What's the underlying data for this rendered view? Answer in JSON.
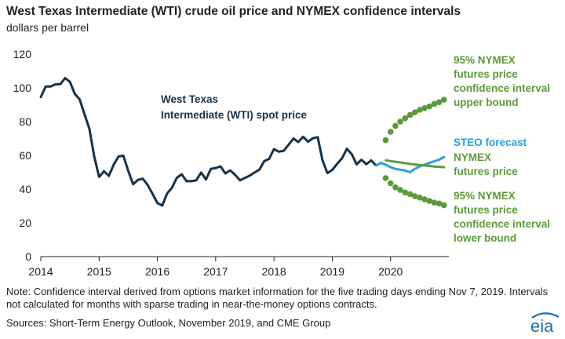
{
  "title": "West Texas Intermediate (WTI) crude oil price and NYMEX confidence intervals",
  "subtitle": "dollars per barrel",
  "note": "Note: Confidence interval derived from options market information for the five trading days ending Nov 7, 2019. Intervals not calculated for months with sparse trading in near-the-money options contracts.",
  "sources": "Sources: Short-Term Energy Outlook, November 2019, and CME Group",
  "logo_text": "eia",
  "colors": {
    "spot": "#13334c",
    "steo": "#2e9fd9",
    "nymex": "#5b9a3a",
    "ci": "#5b9a3a",
    "logo": "#1b6ea8"
  },
  "chart_data": {
    "type": "line",
    "title": "West Texas Intermediate (WTI) crude oil price and NYMEX confidence intervals",
    "ylabel": "dollars per barrel",
    "xlim": [
      "2014-01",
      "2020-12"
    ],
    "ylim": [
      0,
      120
    ],
    "yticks": [
      0,
      20,
      40,
      60,
      80,
      100,
      120
    ],
    "xticks": [
      "2014",
      "2015",
      "2016",
      "2017",
      "2018",
      "2019",
      "2020"
    ],
    "grid": false,
    "series": [
      {
        "name": "West Texas Intermediate (WTI) spot price",
        "label_lines": [
          "West Texas",
          "Intermediate (WTI) spot price"
        ],
        "style": "solid",
        "x": [
          "2014-01",
          "2014-02",
          "2014-03",
          "2014-04",
          "2014-05",
          "2014-06",
          "2014-07",
          "2014-08",
          "2014-09",
          "2014-10",
          "2014-11",
          "2014-12",
          "2015-01",
          "2015-02",
          "2015-03",
          "2015-04",
          "2015-05",
          "2015-06",
          "2015-07",
          "2015-08",
          "2015-09",
          "2015-10",
          "2015-11",
          "2015-12",
          "2016-01",
          "2016-02",
          "2016-03",
          "2016-04",
          "2016-05",
          "2016-06",
          "2016-07",
          "2016-08",
          "2016-09",
          "2016-10",
          "2016-11",
          "2016-12",
          "2017-01",
          "2017-02",
          "2017-03",
          "2017-04",
          "2017-05",
          "2017-06",
          "2017-07",
          "2017-08",
          "2017-09",
          "2017-10",
          "2017-11",
          "2017-12",
          "2018-01",
          "2018-02",
          "2018-03",
          "2018-04",
          "2018-05",
          "2018-06",
          "2018-07",
          "2018-08",
          "2018-09",
          "2018-10",
          "2018-11",
          "2018-12",
          "2019-01",
          "2019-02",
          "2019-03",
          "2019-04",
          "2019-05",
          "2019-06",
          "2019-07",
          "2019-08",
          "2019-09",
          "2019-10"
        ],
        "values": [
          94.6,
          100.8,
          100.8,
          102.1,
          102.2,
          105.8,
          103.6,
          96.5,
          93.2,
          84.4,
          75.8,
          59.3,
          47.2,
          50.6,
          47.8,
          54.5,
          59.3,
          59.8,
          50.9,
          42.9,
          45.5,
          46.2,
          42.4,
          37.2,
          31.7,
          30.3,
          37.5,
          40.8,
          46.7,
          48.8,
          44.7,
          44.7,
          45.2,
          49.8,
          45.7,
          52.0,
          52.5,
          53.5,
          49.3,
          51.1,
          48.5,
          45.2,
          46.6,
          48.0,
          49.8,
          51.6,
          56.6,
          57.9,
          63.7,
          62.2,
          62.7,
          66.3,
          70.0,
          67.9,
          71.0,
          68.1,
          70.2,
          70.8,
          57.0,
          49.5,
          51.4,
          55.0,
          58.2,
          63.9,
          60.8,
          54.7,
          57.4,
          54.8,
          57.0,
          54.0
        ]
      },
      {
        "name": "STEO forecast",
        "label_lines": [
          "STEO forecast"
        ],
        "style": "solid",
        "x": [
          "2019-10",
          "2019-11",
          "2019-12",
          "2020-01",
          "2020-02",
          "2020-03",
          "2020-04",
          "2020-05",
          "2020-06",
          "2020-07",
          "2020-08",
          "2020-09",
          "2020-10",
          "2020-11",
          "2020-12"
        ],
        "values": [
          54.0,
          55.5,
          54.5,
          53.0,
          52.0,
          51.5,
          51.0,
          50.0,
          52.0,
          53.5,
          54.5,
          55.5,
          56.5,
          57.5,
          59.0
        ]
      },
      {
        "name": "NYMEX futures price",
        "label_lines": [
          "NYMEX",
          "futures price"
        ],
        "style": "solid",
        "x": [
          "2019-12",
          "2020-01",
          "2020-02",
          "2020-03",
          "2020-04",
          "2020-05",
          "2020-06",
          "2020-07",
          "2020-08",
          "2020-09",
          "2020-10",
          "2020-11",
          "2020-12"
        ],
        "values": [
          57.0,
          56.6,
          56.2,
          55.8,
          55.4,
          55.0,
          54.6,
          54.3,
          54.0,
          53.7,
          53.4,
          53.2,
          53.0
        ]
      },
      {
        "name": "95% NYMEX futures price confidence interval upper bound",
        "label_lines": [
          "95% NYMEX",
          "futures price",
          "confidence interval",
          "upper bound"
        ],
        "style": "dotted",
        "x": [
          "2019-12",
          "2020-01",
          "2020-02",
          "2020-03",
          "2020-04",
          "2020-05",
          "2020-06",
          "2020-07",
          "2020-08",
          "2020-09",
          "2020-10",
          "2020-11",
          "2020-12"
        ],
        "values": [
          69.0,
          74.0,
          77.5,
          80.0,
          82.0,
          84.0,
          85.5,
          87.0,
          88.0,
          89.0,
          90.5,
          91.5,
          93.0
        ]
      },
      {
        "name": "95% NYMEX futures price confidence interval lower bound",
        "label_lines": [
          "95% NYMEX",
          "futures price",
          "confidence interval",
          "lower bound"
        ],
        "style": "dotted",
        "x": [
          "2019-12",
          "2020-01",
          "2020-02",
          "2020-03",
          "2020-04",
          "2020-05",
          "2020-06",
          "2020-07",
          "2020-08",
          "2020-09",
          "2020-10",
          "2020-11",
          "2020-12"
        ],
        "values": [
          46.5,
          43.5,
          41.0,
          39.5,
          38.0,
          37.0,
          35.8,
          35.0,
          34.0,
          33.0,
          32.0,
          31.5,
          30.5
        ]
      }
    ]
  }
}
